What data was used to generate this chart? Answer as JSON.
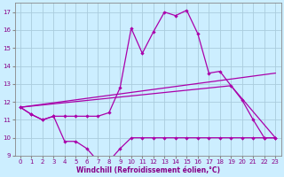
{
  "xlabel": "Windchill (Refroidissement éolien,°C)",
  "background_color": "#cceeff",
  "grid_color": "#aaccdd",
  "line_color": "#aa00aa",
  "xlim": [
    -0.5,
    23.5
  ],
  "ylim": [
    9,
    17.5
  ],
  "yticks": [
    9,
    10,
    11,
    12,
    13,
    14,
    15,
    16,
    17
  ],
  "xticks": [
    0,
    1,
    2,
    3,
    4,
    5,
    6,
    7,
    8,
    9,
    10,
    11,
    12,
    13,
    14,
    15,
    16,
    17,
    18,
    19,
    20,
    21,
    22,
    23
  ],
  "curve1_x": [
    0,
    1,
    2,
    3,
    4,
    5,
    6,
    7,
    8,
    9,
    10,
    11,
    12,
    13,
    14,
    15,
    16,
    17,
    18,
    19,
    20,
    21,
    22,
    23
  ],
  "curve1_y": [
    11.7,
    11.3,
    11.0,
    11.2,
    11.2,
    11.2,
    11.2,
    11.2,
    11.4,
    12.8,
    16.1,
    14.7,
    15.9,
    17.0,
    16.8,
    17.1,
    15.8,
    13.6,
    13.7,
    12.9,
    12.1,
    11.0,
    10.0,
    10.0
  ],
  "curve2_x": [
    0,
    1,
    2,
    3,
    4,
    5,
    6,
    7,
    8,
    9,
    10,
    11,
    12,
    13,
    14,
    15,
    16,
    17,
    18,
    19,
    20,
    21,
    22,
    23
  ],
  "curve2_y": [
    11.7,
    11.3,
    11.0,
    11.2,
    9.8,
    9.8,
    9.4,
    8.7,
    8.7,
    9.4,
    10.0,
    10.0,
    10.0,
    10.0,
    10.0,
    10.0,
    10.0,
    10.0,
    10.0,
    10.0,
    10.0,
    10.0,
    10.0,
    10.0
  ],
  "line1_x": [
    0,
    23
  ],
  "line1_y": [
    11.7,
    13.6
  ],
  "line2_x": [
    0,
    19,
    23
  ],
  "line2_y": [
    11.7,
    12.9,
    10.0
  ],
  "figsize": [
    3.2,
    2.0
  ],
  "dpi": 100
}
